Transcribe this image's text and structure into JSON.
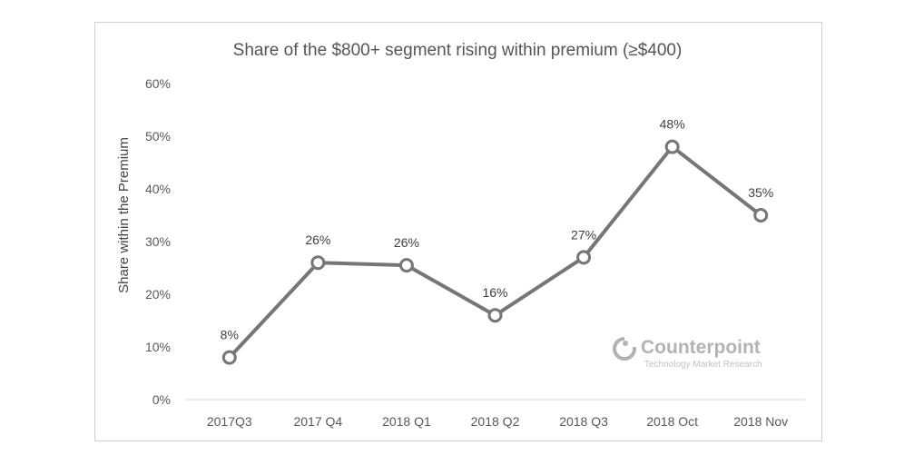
{
  "chart_data": {
    "type": "line",
    "title": "Share of the $800+ segment rising within premium (≥$400)",
    "xlabel": "",
    "ylabel": "Share within the Premium",
    "categories": [
      "2017Q3",
      "2017 Q4",
      "2018 Q1",
      "2018 Q2",
      "2018 Q3",
      "2018 Oct",
      "2018 Nov"
    ],
    "series": [
      {
        "values": [
          0.08,
          0.26,
          0.255,
          0.16,
          0.27,
          0.48,
          0.35
        ],
        "data_labels": [
          "8%",
          "26%",
          "26%",
          "16%",
          "27%",
          "48%",
          "35%"
        ]
      }
    ],
    "ylim": [
      0,
      0.6
    ],
    "yticks": [
      0,
      0.1,
      0.2,
      0.3,
      0.4,
      0.5,
      0.6
    ],
    "ytick_labels": [
      "0%",
      "10%",
      "20%",
      "30%",
      "40%",
      "50%",
      "60%"
    ],
    "grid": false,
    "legend": "none",
    "line_color": "#767676",
    "marker_fill": "#ffffff"
  },
  "watermark": {
    "name": "Counterpoint",
    "tagline": "Technology Market Research"
  }
}
